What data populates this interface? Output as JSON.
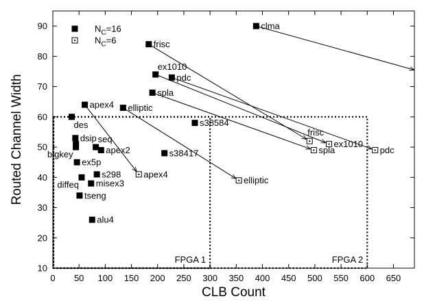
{
  "chart_data": {
    "type": "scatter",
    "title": "",
    "xlabel": "CLB Count",
    "ylabel": "Routed Channel Width",
    "xlim": [
      0,
      690
    ],
    "ylim": [
      10,
      95
    ],
    "xticks": [
      0,
      50,
      100,
      150,
      200,
      250,
      300,
      350,
      400,
      450,
      500,
      550,
      600,
      650
    ],
    "yticks": [
      10,
      20,
      30,
      40,
      50,
      60,
      70,
      80,
      90
    ],
    "grid": false,
    "legend": {
      "placement": "top-left",
      "entries": [
        {
          "key": "nc16",
          "label_main": "N",
          "label_sub": "C",
          "label_rest": "=16",
          "marker": "filled-square"
        },
        {
          "key": "nc6",
          "label_main": "N",
          "label_sub": "C",
          "label_rest": "=6",
          "marker": "open-square-dot"
        }
      ]
    },
    "regions": [
      {
        "label": "FPGA 1",
        "x": [
          0,
          300
        ],
        "y": [
          10,
          60
        ]
      },
      {
        "label": "FPGA 2",
        "x": [
          0,
          600
        ],
        "y": [
          10,
          60
        ]
      }
    ],
    "series": [
      {
        "key": "nc16",
        "marker": "filled-square",
        "points": [
          {
            "label": "clma",
            "x": 388,
            "y": 90,
            "label_pos": "right"
          },
          {
            "label": "frisc",
            "x": 183,
            "y": 84,
            "label_pos": "right"
          },
          {
            "label": "ex1010",
            "x": 196,
            "y": 74,
            "label_pos": "above-right"
          },
          {
            "label": "pdc",
            "x": 227,
            "y": 73,
            "label_pos": "right"
          },
          {
            "label": "spla",
            "x": 190,
            "y": 68,
            "label_pos": "right"
          },
          {
            "label": "apex4",
            "x": 61,
            "y": 64,
            "label_pos": "right"
          },
          {
            "label": "elliptic",
            "x": 134,
            "y": 63,
            "label_pos": "right"
          },
          {
            "label": "des",
            "x": 36,
            "y": 60,
            "label_pos": "below-right"
          },
          {
            "label": "s38584",
            "x": 271,
            "y": 58,
            "label_pos": "right"
          },
          {
            "label": "dsip",
            "x": 43,
            "y": 53,
            "label_pos": "right"
          },
          {
            "label": "seq",
            "x": 82,
            "y": 50,
            "label_pos": "above-right"
          },
          {
            "label": "",
            "x": 44,
            "y": 51,
            "label_pos": "none"
          },
          {
            "label": "bigkey",
            "x": 44,
            "y": 50,
            "label_pos": "below-left"
          },
          {
            "label": "apex2",
            "x": 92,
            "y": 49,
            "label_pos": "right"
          },
          {
            "label": "s38417",
            "x": 213,
            "y": 48,
            "label_pos": "right"
          },
          {
            "label": "ex5p",
            "x": 46,
            "y": 45,
            "label_pos": "right"
          },
          {
            "label": "s298",
            "x": 84,
            "y": 41,
            "label_pos": "right"
          },
          {
            "label": "diffeq",
            "x": 55,
            "y": 40,
            "label_pos": "below-left"
          },
          {
            "label": "misex3",
            "x": 73,
            "y": 38,
            "label_pos": "right"
          },
          {
            "label": "tseng",
            "x": 51,
            "y": 34,
            "label_pos": "right"
          },
          {
            "label": "alu4",
            "x": 75,
            "y": 26,
            "label_pos": "right"
          }
        ]
      },
      {
        "key": "nc6",
        "marker": "open-square-dot",
        "points": [
          {
            "label": "frisc",
            "x": 490,
            "y": 52,
            "label_pos": "above"
          },
          {
            "label": "ex1010",
            "x": 527,
            "y": 51,
            "label_pos": "right"
          },
          {
            "label": "spla",
            "x": 498,
            "y": 49,
            "label_pos": "right"
          },
          {
            "label": "pdc",
            "x": 615,
            "y": 49,
            "label_pos": "right"
          },
          {
            "label": "apex4",
            "x": 164,
            "y": 41,
            "label_pos": "right"
          },
          {
            "label": "elliptic",
            "x": 355,
            "y": 39,
            "label_pos": "right"
          }
        ]
      }
    ],
    "arrows": [
      {
        "from": [
          388,
          90
        ],
        "to": [
          690,
          75.5
        ]
      },
      {
        "from": [
          183,
          84
        ],
        "to": [
          490,
          52
        ]
      },
      {
        "from": [
          196,
          74
        ],
        "to": [
          527,
          51
        ]
      },
      {
        "from": [
          227,
          73
        ],
        "to": [
          615,
          49
        ]
      },
      {
        "from": [
          190,
          68
        ],
        "to": [
          498,
          49
        ]
      },
      {
        "from": [
          61,
          64
        ],
        "to": [
          164,
          41
        ]
      },
      {
        "from": [
          134,
          63
        ],
        "to": [
          355,
          39
        ]
      }
    ]
  }
}
